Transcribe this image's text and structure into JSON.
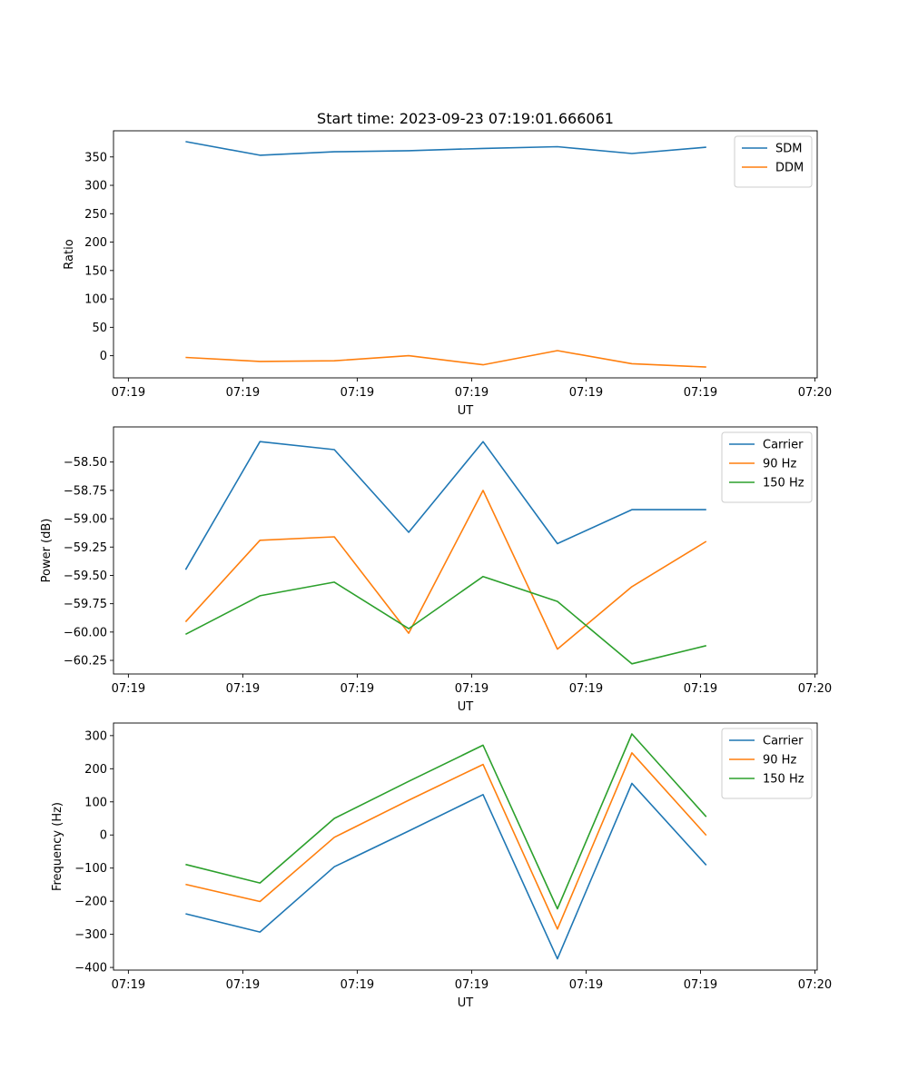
{
  "chart_data": [
    {
      "type": "line",
      "title": "Start time: 2023-09-23 07:19:01.666061",
      "xlabel": "UT",
      "ylabel": "Ratio",
      "x_ticks": [
        "07:19",
        "07:19",
        "07:19",
        "07:19",
        "07:19",
        "07:19",
        "07:20"
      ],
      "x": [
        0.5,
        1.15,
        1.8,
        2.45,
        3.1,
        3.75,
        4.4,
        5.05
      ],
      "xlim": [
        -0.13,
        6.02
      ],
      "ylim": [
        -39,
        396
      ],
      "y_ticks": [
        0,
        50,
        100,
        150,
        200,
        250,
        300,
        350
      ],
      "legend": "top-right",
      "series": [
        {
          "name": "SDM",
          "color": "#1f77b4",
          "values": [
            377,
            353,
            359,
            361,
            365,
            368,
            356,
            367
          ]
        },
        {
          "name": "DDM",
          "color": "#ff7f0e",
          "values": [
            -3,
            -10,
            -9,
            0,
            -16,
            9,
            -14,
            -20
          ]
        }
      ]
    },
    {
      "type": "line",
      "title": "",
      "xlabel": "UT",
      "ylabel": "Power (dB)",
      "x_ticks": [
        "07:19",
        "07:19",
        "07:19",
        "07:19",
        "07:19",
        "07:19",
        "07:20"
      ],
      "x": [
        0.5,
        1.15,
        1.8,
        2.45,
        3.1,
        3.75,
        4.4,
        5.05
      ],
      "xlim": [
        -0.13,
        6.02
      ],
      "ylim": [
        -60.37,
        -58.19
      ],
      "y_ticks": [
        "-58.50",
        "-58.75",
        "-59.00",
        "-59.25",
        "-59.50",
        "-59.75",
        "-60.00",
        "-60.25"
      ],
      "legend": "top-right",
      "series": [
        {
          "name": "Carrier",
          "color": "#1f77b4",
          "values": [
            -59.45,
            -58.32,
            -58.39,
            -59.12,
            -58.32,
            -59.22,
            -58.92,
            -58.92
          ]
        },
        {
          "name": "90 Hz",
          "color": "#ff7f0e",
          "values": [
            -59.91,
            -59.19,
            -59.16,
            -60.01,
            -58.75,
            -60.15,
            -59.6,
            -59.2
          ]
        },
        {
          "name": "150 Hz",
          "color": "#2ca02c",
          "values": [
            -60.02,
            -59.68,
            -59.56,
            -59.97,
            -59.51,
            -59.73,
            -60.28,
            -60.12
          ]
        }
      ]
    },
    {
      "type": "line",
      "title": "",
      "xlabel": "UT",
      "ylabel": "Frequency (Hz)",
      "x_ticks": [
        "07:19",
        "07:19",
        "07:19",
        "07:19",
        "07:19",
        "07:19",
        "07:20"
      ],
      "x": [
        0.5,
        1.15,
        1.8,
        2.45,
        3.1,
        3.75,
        4.4,
        5.05
      ],
      "xlim": [
        -0.13,
        6.02
      ],
      "ylim": [
        -408,
        338
      ],
      "y_ticks": [
        -400,
        -300,
        -200,
        -100,
        0,
        100,
        200,
        300
      ],
      "legend": "top-right",
      "series": [
        {
          "name": "Carrier",
          "color": "#1f77b4",
          "values": [
            -238,
            -293,
            -96,
            12,
            122,
            -374,
            156,
            -91
          ]
        },
        {
          "name": "90 Hz",
          "color": "#ff7f0e",
          "values": [
            -149,
            -201,
            -7,
            105,
            213,
            -284,
            248,
            -1
          ]
        },
        {
          "name": "150 Hz",
          "color": "#2ca02c",
          "values": [
            -89,
            -145,
            50,
            162,
            271,
            -223,
            305,
            55
          ]
        }
      ]
    }
  ]
}
